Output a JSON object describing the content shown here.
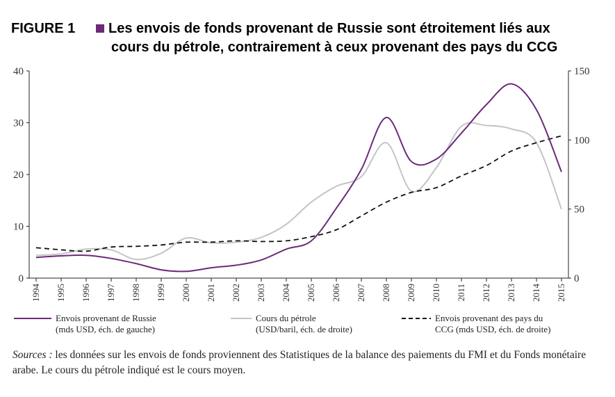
{
  "title": {
    "label": "FIGURE 1",
    "line1": "Les envois de fonds provenant de Russie sont étroitement liés aux",
    "line2": "cours du pétrole, contrairement à ceux provenant des pays du CCG"
  },
  "chart_data": {
    "type": "line",
    "x": [
      "1994",
      "1995",
      "1996",
      "1997",
      "1998",
      "1999",
      "2000",
      "2001",
      "2002",
      "2003",
      "2004",
      "2005",
      "2006",
      "2007",
      "2008",
      "2009",
      "2010",
      "2011",
      "2012",
      "2013",
      "2014",
      "2015"
    ],
    "y_left": {
      "ticks": [
        "0",
        "10",
        "20",
        "30",
        "40"
      ],
      "ylim": [
        0,
        40
      ]
    },
    "y_right": {
      "ticks": [
        "0",
        "50",
        "100",
        "150"
      ],
      "ylim": [
        0,
        150
      ]
    },
    "series": [
      {
        "name": "Envois provenant de Russie",
        "name_line2": "(mds USD, éch. de gauche)",
        "axis": "left",
        "color": "#6b2a7a",
        "style": "solid",
        "values": [
          4.0,
          4.3,
          4.4,
          3.8,
          2.8,
          1.6,
          1.3,
          2.0,
          2.5,
          3.5,
          5.6,
          7.2,
          13.5,
          21.0,
          31.0,
          22.5,
          23.0,
          28.0,
          33.5,
          37.5,
          32.5,
          20.5
        ]
      },
      {
        "name": "Cours du pétrole",
        "name_line2": "(USD/baril, éch. de droite)",
        "axis": "right",
        "color": "#c4c4c4",
        "style": "solid",
        "values": [
          16.5,
          17.5,
          21.0,
          20.5,
          13.5,
          18.0,
          29.0,
          25.5,
          26.0,
          29.5,
          39.0,
          55.0,
          66.5,
          73.5,
          98.0,
          63.0,
          80.0,
          110.0,
          110.5,
          108.0,
          98.0,
          50.0
        ]
      },
      {
        "name": "Envois provenant des pays du",
        "name_line2": "CCG (mds USD, éch. de droite)",
        "axis": "right",
        "color": "#111111",
        "style": "dashed",
        "values": [
          22.0,
          20.5,
          19.5,
          22.5,
          23.0,
          24.0,
          26.0,
          26.0,
          27.0,
          26.5,
          27.0,
          30.0,
          35.0,
          45.0,
          55.0,
          62.0,
          65.5,
          74.0,
          81.5,
          92.0,
          98.0,
          103.0
        ]
      }
    ]
  },
  "source": {
    "label": "Sources :",
    "text": "les données sur les envois de fonds proviennent des Statistiques de la balance des paiements du FMI et du Fonds monétaire arabe. Le cours du pétrole indiqué est le cours moyen."
  }
}
